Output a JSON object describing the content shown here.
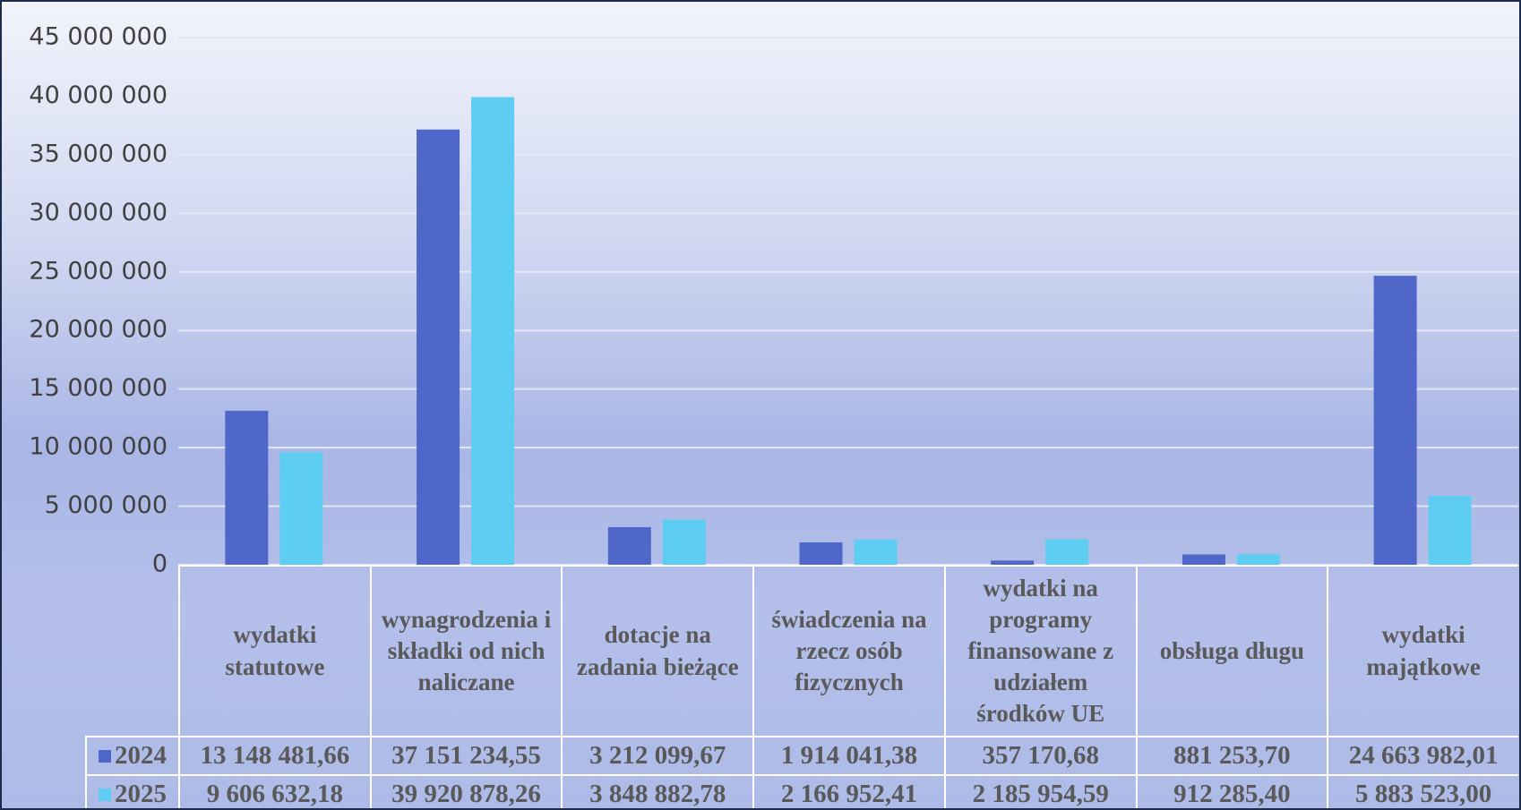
{
  "chart_data": {
    "type": "bar",
    "categories": [
      "wydatki statutowe",
      "wynagrodzenia i składki od nich naliczane",
      "dotacje na zadania bieżące",
      "świadczenia na rzecz osób fizycznych",
      "wydatki na programy finansowane z udziałem środków UE",
      "obsługa długu",
      "wydatki majątkowe"
    ],
    "series": [
      {
        "name": "2024",
        "color": "#4f67c9",
        "values": [
          13148481.66,
          37151234.55,
          3212099.67,
          1914041.38,
          357170.68,
          881253.7,
          24663982.01
        ],
        "value_labels": [
          "13 148 481,66",
          "37 151 234,55",
          "3 212 099,67",
          "1 914 041,38",
          "357 170,68",
          "881 253,70",
          "24 663 982,01"
        ]
      },
      {
        "name": "2025",
        "color": "#5ecdf2",
        "values": [
          9606632.18,
          39920878.26,
          3848882.78,
          2166952.41,
          2185954.59,
          912285.4,
          5883523.0
        ],
        "value_labels": [
          "9 606 632,18",
          "39 920 878,26",
          "3 848 882,78",
          "2 166 952,41",
          "2 185 954,59",
          "912 285,40",
          "5 883 523,00"
        ]
      }
    ],
    "ylim": [
      0,
      45000000
    ],
    "yticks": [
      0,
      {
        "value": 5000000,
        "label": "5 000 000"
      },
      {
        "value": 10000000,
        "label": "10 000 000"
      },
      {
        "value": 15000000,
        "label": "15 000 000"
      },
      {
        "value": 20000000,
        "label": "20 000 000"
      },
      {
        "value": 25000000,
        "label": "25 000 000"
      },
      {
        "value": 30000000,
        "label": "30 000 000"
      },
      {
        "value": 35000000,
        "label": "35 000 000"
      },
      {
        "value": 40000000,
        "label": "40 000 000"
      },
      {
        "value": 45000000,
        "label": "45 000 000"
      }
    ],
    "grid": true
  }
}
